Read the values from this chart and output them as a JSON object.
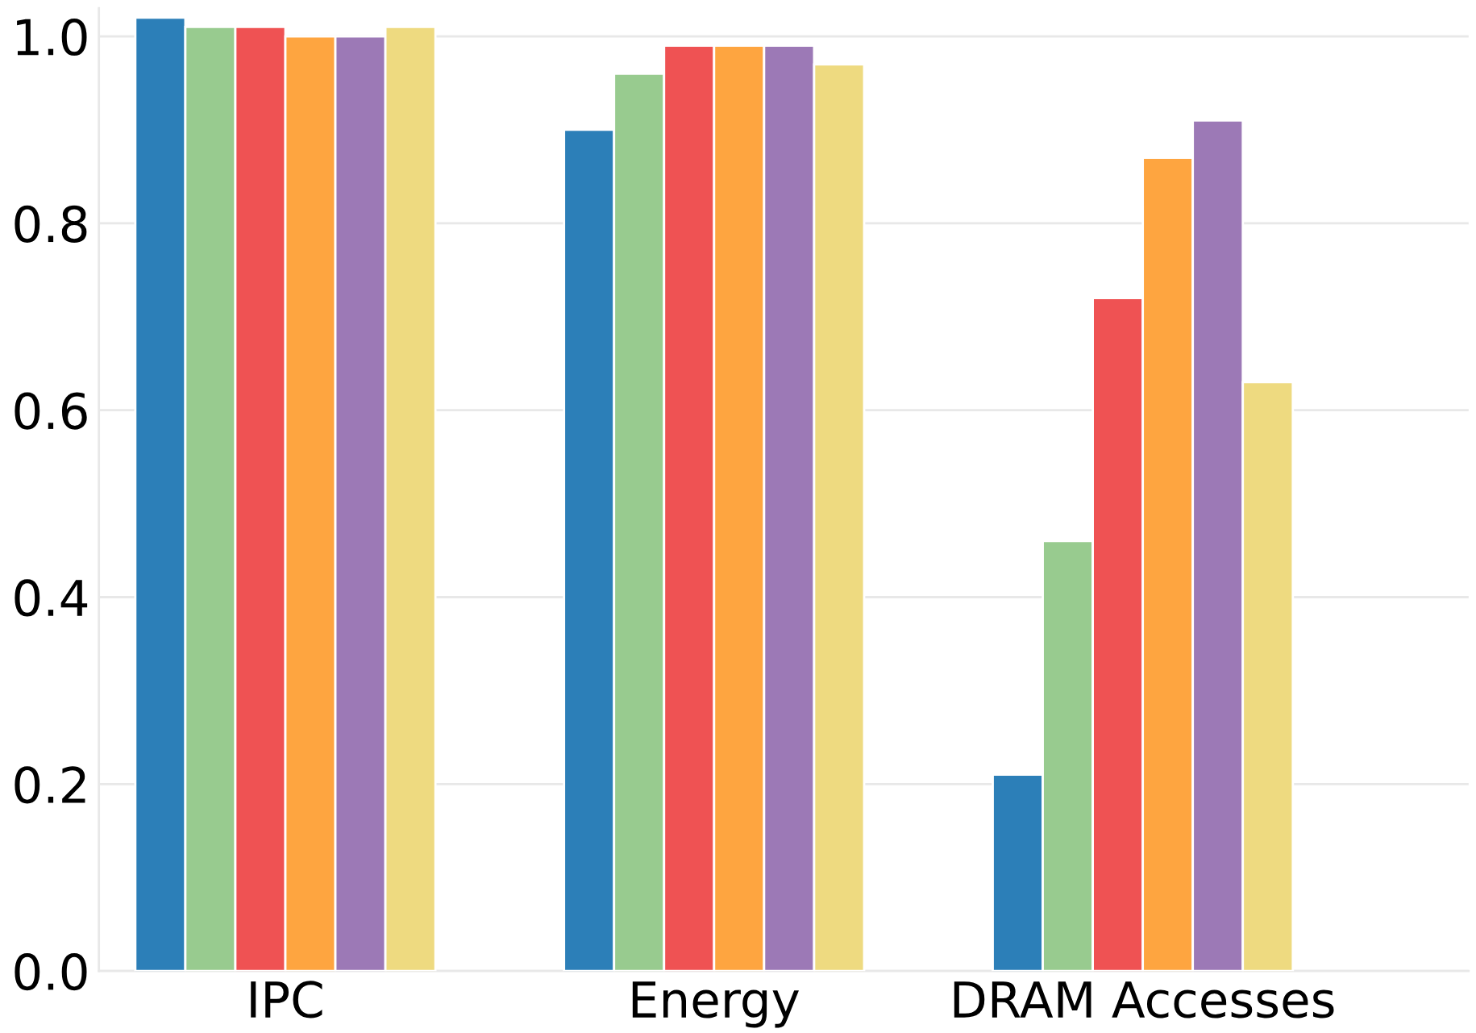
{
  "chart_data": {
    "type": "bar",
    "categories": [
      "IPC",
      "Energy",
      "DRAM Accesses"
    ],
    "series": [
      {
        "color": "#2c7fb8",
        "values": [
          1.02,
          0.9,
          0.21
        ]
      },
      {
        "color": "#98cb8f",
        "values": [
          1.01,
          0.96,
          0.46
        ]
      },
      {
        "color": "#ef5253",
        "values": [
          1.01,
          0.99,
          0.72
        ]
      },
      {
        "color": "#fea540",
        "values": [
          1.0,
          0.99,
          0.87
        ]
      },
      {
        "color": "#9c79b6",
        "values": [
          1.0,
          0.99,
          0.91
        ]
      },
      {
        "color": "#eeda80",
        "values": [
          1.01,
          0.97,
          0.63
        ]
      }
    ],
    "ylim": [
      0,
      1.03
    ],
    "yticks": [
      {
        "value": 0,
        "label": "0.0"
      },
      0.2,
      0.4,
      0.6,
      0.8,
      {
        "value": 1,
        "label": "1.0"
      }
    ],
    "grid": "y",
    "legend": false
  }
}
